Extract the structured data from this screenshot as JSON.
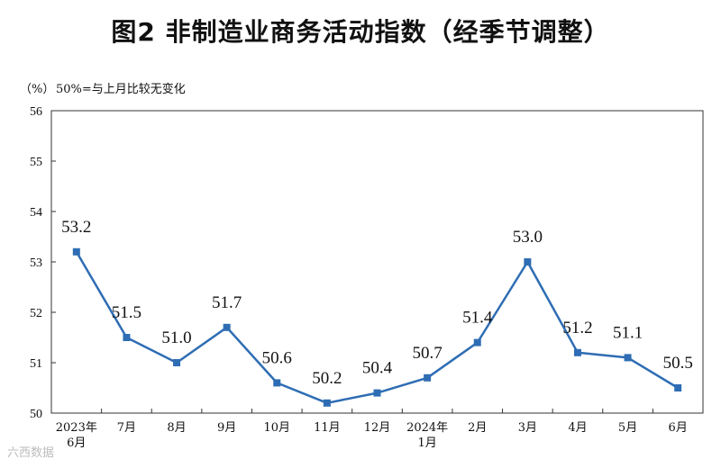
{
  "title": "图2  非制造业商务活动指数（经季节调整）",
  "unit": "（%）",
  "note": "50%=与上月比较无变化",
  "watermark": "六西数据",
  "colors": {
    "line": "#2e6db4",
    "axis": "#333333"
  },
  "chart_data": {
    "type": "line",
    "title": "图2  非制造业商务活动指数（经季节调整）",
    "ylabel": "（%）",
    "ylim": [
      50,
      56
    ],
    "yticks": [
      50,
      51,
      52,
      53,
      54,
      55,
      56
    ],
    "grid": false,
    "categories": [
      [
        "2023年",
        "6月"
      ],
      [
        "7月"
      ],
      [
        "8月"
      ],
      [
        "9月"
      ],
      [
        "10月"
      ],
      [
        "11月"
      ],
      [
        "12月"
      ],
      [
        "2024年",
        "1月"
      ],
      [
        "2月"
      ],
      [
        "3月"
      ],
      [
        "4月"
      ],
      [
        "5月"
      ],
      [
        "6月"
      ]
    ],
    "series": [
      {
        "values": [
          53.2,
          51.5,
          51.0,
          51.7,
          50.6,
          50.2,
          50.4,
          50.7,
          51.4,
          53.0,
          51.2,
          51.1,
          50.5
        ],
        "labels": [
          "53.2",
          "51.5",
          "51.0",
          "51.7",
          "50.6",
          "50.2",
          "50.4",
          "50.7",
          "51.4",
          "53.0",
          "51.2",
          "51.1",
          "50.5"
        ]
      }
    ]
  }
}
